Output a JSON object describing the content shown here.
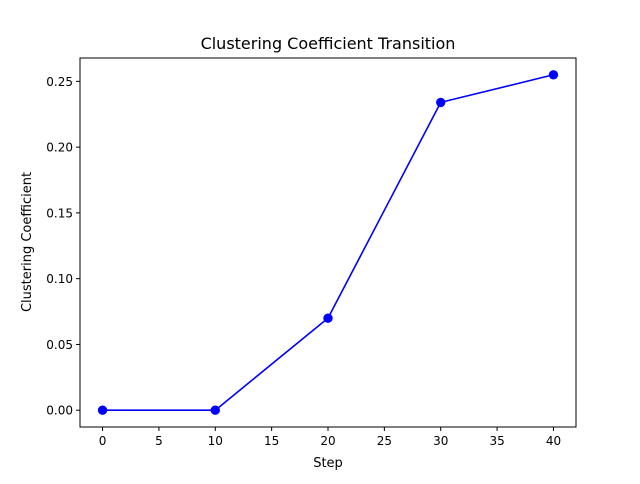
{
  "chart_data": {
    "type": "line",
    "title": "Clustering Coefficient Transition",
    "xlabel": "Step",
    "ylabel": "Clustering Coefficient",
    "x": [
      0,
      10,
      20,
      30,
      40
    ],
    "series": [
      {
        "values": [
          0.0,
          0.0,
          0.07,
          0.234,
          0.255
        ],
        "color": "#0000ff",
        "marker": "circle"
      }
    ],
    "xlim": [
      -2,
      42
    ],
    "ylim": [
      -0.01275,
      0.26775
    ],
    "xticks": [
      0,
      5,
      10,
      15,
      20,
      25,
      30,
      35,
      40
    ],
    "xtick_labels": [
      "0",
      "5",
      "10",
      "15",
      "20",
      "25",
      "30",
      "35",
      "40"
    ],
    "yticks": [
      0.0,
      0.05,
      0.1,
      0.15,
      0.2,
      0.25
    ],
    "ytick_labels": [
      "0.00",
      "0.05",
      "0.10",
      "0.15",
      "0.20",
      "0.25"
    ],
    "grid": false,
    "legend": "none"
  }
}
